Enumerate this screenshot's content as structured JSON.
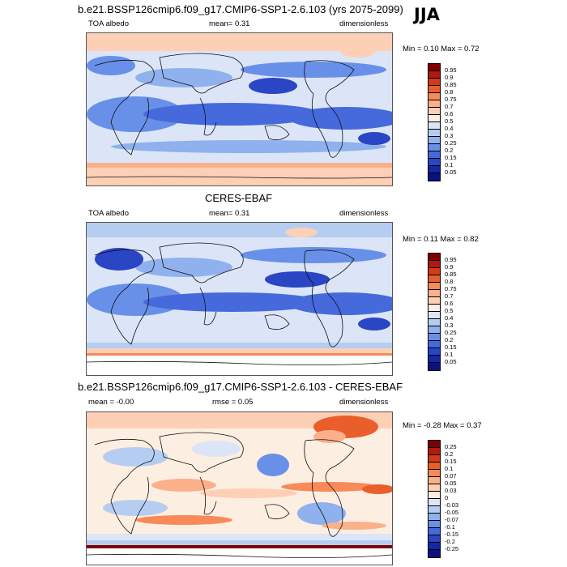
{
  "season": "JJA",
  "panels": [
    {
      "title": "b.e21.BSSP126cmip6.f09_g17.CMIP6-SSP1-2.6.103 (yrs 2075-2099)",
      "left_label": "TOA albedo",
      "center_label": "mean=  0.31",
      "right_label": "dimensionless",
      "minmax": "Min =   0.10  Max =   0.72",
      "colorbar": {
        "labels": [
          "0.95",
          "0.9",
          "0.85",
          "0.8",
          "0.75",
          "0.7",
          "0.6",
          "0.5",
          "0.4",
          "0.3",
          "0.25",
          "0.2",
          "0.15",
          "0.1",
          "0.05"
        ],
        "colors": [
          "#800000",
          "#b2190e",
          "#d33a17",
          "#ea5e2c",
          "#f78a58",
          "#fbb08c",
          "#fdd0b5",
          "#fdeee2",
          "#dbe5f7",
          "#b6cdf2",
          "#8fb1ee",
          "#6890e8",
          "#4669dc",
          "#2a46c4",
          "#1427a6",
          "#0b1280"
        ]
      }
    },
    {
      "title": "CERES-EBAF",
      "left_label": "TOA albedo",
      "center_label": "mean=  0.31",
      "right_label": "dimensionless",
      "minmax": "Min =   0.11  Max =   0.82",
      "colorbar": {
        "labels": [
          "0.95",
          "0.9",
          "0.85",
          "0.8",
          "0.75",
          "0.7",
          "0.6",
          "0.5",
          "0.4",
          "0.3",
          "0.25",
          "0.2",
          "0.15",
          "0.1",
          "0.05"
        ],
        "colors": [
          "#800000",
          "#b2190e",
          "#d33a17",
          "#ea5e2c",
          "#f78a58",
          "#fbb08c",
          "#fdd0b5",
          "#fdeee2",
          "#dbe5f7",
          "#b6cdf2",
          "#8fb1ee",
          "#6890e8",
          "#4669dc",
          "#2a46c4",
          "#1427a6",
          "#0b1280"
        ]
      }
    },
    {
      "title": "b.e21.BSSP126cmip6.f09_g17.CMIP6-SSP1-2.6.103 - CERES-EBAF",
      "left_label": "mean =  -0.00",
      "center_label": "rmse =  0.05",
      "right_label": "dimensionless",
      "minmax": "Min =  -0.28  Max =   0.37",
      "colorbar": {
        "labels": [
          "0.25",
          "0.2",
          "0.15",
          "0.1",
          "0.07",
          "0.05",
          "0.03",
          "0",
          "-0.03",
          "-0.05",
          "-0.07",
          "-0.1",
          "-0.15",
          "-0.2",
          "-0.25"
        ],
        "colors": [
          "#800000",
          "#b2190e",
          "#d33a17",
          "#ea5e2c",
          "#f78a58",
          "#fbb08c",
          "#fdd0b5",
          "#fdeee2",
          "#dbe5f7",
          "#b6cdf2",
          "#8fb1ee",
          "#6890e8",
          "#4669dc",
          "#2a46c4",
          "#1427a6",
          "#0b1280"
        ]
      }
    }
  ]
}
